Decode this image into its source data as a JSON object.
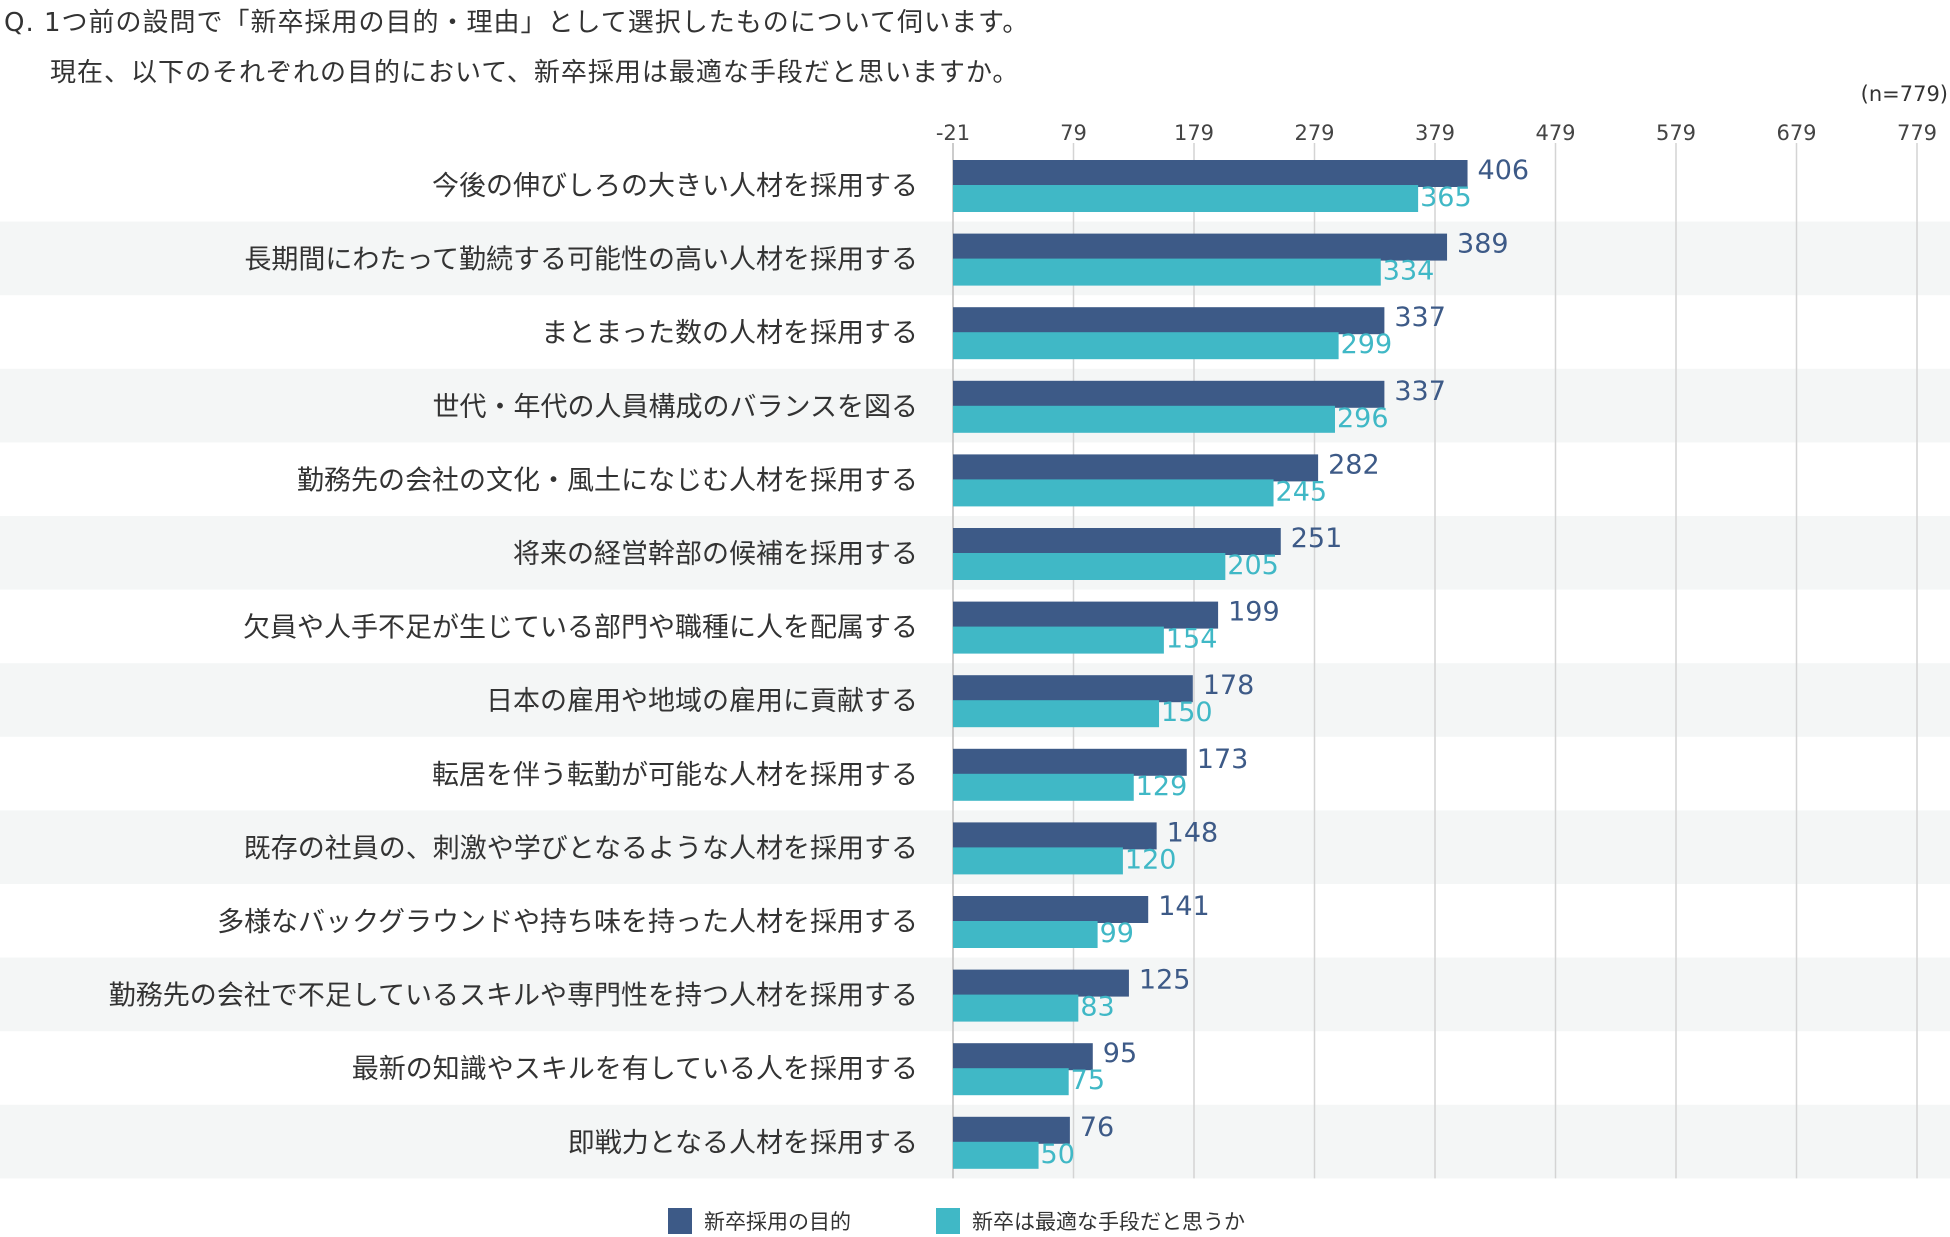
{
  "question": {
    "line1": "Q. 1つ前の設問で「新卒採用の目的・理由」として選択したものについて伺います。",
    "line2": "現在、以下のそれぞれの目的において、新卒採用は最適な手段だと思いますか。"
  },
  "sample_size": "(n=779)",
  "chart_data": {
    "type": "bar",
    "orientation": "horizontal",
    "xlim": [
      -21,
      779
    ],
    "ticks": [
      -21,
      79,
      179,
      279,
      379,
      479,
      579,
      679,
      779
    ],
    "grid": true,
    "legend_position": "bottom",
    "categories": [
      "今後の伸びしろの大きい人材を採用する",
      "長期間にわたって勤続する可能性の高い人材を採用する",
      "まとまった数の人材を採用する",
      "世代・年代の人員構成のバランスを図る",
      "勤務先の会社の文化・風土になじむ人材を採用する",
      "将来の経営幹部の候補を採用する",
      "欠員や人手不足が生じている部門や職種に人を配属する",
      "日本の雇用や地域の雇用に貢献する",
      "転居を伴う転勤が可能な人材を採用する",
      "既存の社員の、刺激や学びとなるような人材を採用する",
      "多様なバックグラウンドや持ち味を持った人材を採用する",
      "勤務先の会社で不足しているスキルや専門性を持つ人材を採用する",
      "最新の知識やスキルを有している人を採用する",
      "即戦力となる人材を採用する"
    ],
    "series": [
      {
        "name": "新卒採用の目的",
        "color": "#3d5a87",
        "values": [
          406,
          389,
          337,
          337,
          282,
          251,
          199,
          178,
          173,
          148,
          141,
          125,
          95,
          76
        ]
      },
      {
        "name": "新卒は最適な手段だと思うか",
        "color": "#40b8c6",
        "values": [
          365,
          334,
          299,
          296,
          245,
          205,
          154,
          150,
          129,
          120,
          99,
          83,
          75,
          50
        ]
      }
    ]
  }
}
